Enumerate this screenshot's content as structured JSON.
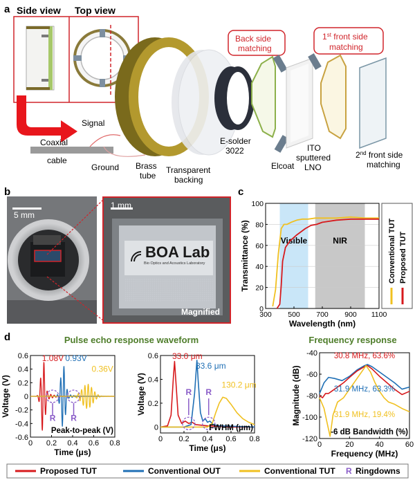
{
  "panels": {
    "a": "a",
    "b": "b",
    "c": "c",
    "d": "d"
  },
  "panel_a": {
    "side_view": "Side view",
    "top_view": "Top view",
    "signal": "Signal",
    "coaxial_line1": "Coaxial",
    "coaxial_line2": "cable",
    "ground": "Ground",
    "brass_line1": "Brass",
    "brass_line2": "tube",
    "backing_line1": "Transparent",
    "backing_line2": "backing",
    "esolder_line1": "E-solder",
    "esolder_line2": "3022",
    "elcoat": "Elcoat",
    "ito_line1": "ITO",
    "ito_line2": "sputtered",
    "ito_line3": "LNO",
    "second_front_line1_sup": "nd",
    "second_front_line1_num": "2",
    "second_front_line1_rest": " front side",
    "second_front_line2": "matching",
    "back_matching_line1": "Back side",
    "back_matching_line2": "matching",
    "first_front_num": "1",
    "first_front_sup": "st",
    "first_front_rest": " front side",
    "first_front_line2": "matching"
  },
  "panel_b": {
    "scale_left": "5 mm",
    "scale_right": "1 mm",
    "logo_text": "BOA Lab",
    "logo_sub": "Bio Optics and Acoustics Laboratory",
    "magnified": "Magnified"
  },
  "colors": {
    "proposed": "#d7191c",
    "conventional_out": "#1f6fb5",
    "conventional_tut": "#f0c020",
    "ringdown": "#8a5cc8",
    "visible_band": "#c9e6f8",
    "nir_band": "#c8c8c8",
    "title_green": "#4e7d2a"
  },
  "legend": {
    "proposed": "Proposed TUT",
    "conventional_out": "Conventional OUT",
    "conventional_tut": "Conventional TUT",
    "ringdowns_symbol": "R",
    "ringdowns": "Ringdowns"
  },
  "section_titles": {
    "pulse": "Pulse echo response waveform",
    "freq": "Frequency response"
  },
  "chart_data": [
    {
      "id": "c",
      "type": "line",
      "xlabel": "Wavelength (nm)",
      "ylabel": "Transmittance (%)",
      "xlim": [
        300,
        1100
      ],
      "ylim": [
        0,
        100
      ],
      "xticks": [
        300,
        500,
        700,
        900,
        1100
      ],
      "yticks": [
        0,
        20,
        40,
        60,
        80,
        100
      ],
      "bands": [
        {
          "label": "Visible",
          "x": [
            400,
            600
          ]
        },
        {
          "label": "NIR",
          "x": [
            650,
            1000
          ]
        }
      ],
      "legend": [
        "Conventional TUT",
        "Proposed TUT"
      ],
      "series": [
        {
          "name": "Conventional TUT",
          "x": [
            350,
            370,
            390,
            410,
            430,
            450,
            480,
            520,
            560,
            600,
            650,
            700,
            800,
            900,
            1000,
            1050,
            1100
          ],
          "y": [
            2,
            18,
            52,
            76,
            80,
            80,
            82,
            84,
            85,
            85,
            86,
            86,
            86,
            87,
            86,
            86,
            86
          ]
        },
        {
          "name": "Proposed TUT",
          "x": [
            380,
            400,
            410,
            420,
            440,
            470,
            520,
            580,
            620,
            660,
            700,
            800,
            900,
            1000,
            1050,
            1100
          ],
          "y": [
            0,
            4,
            22,
            45,
            58,
            64,
            70,
            76,
            79,
            80,
            82,
            84,
            85,
            85,
            85,
            85
          ]
        }
      ]
    },
    {
      "id": "d1",
      "type": "line",
      "xlabel": "Time (μs)",
      "ylabel": "Voltage (V)",
      "xlim": [
        0,
        0.8
      ],
      "ylim": [
        -0.6,
        0.6
      ],
      "xticks": [
        0,
        0.2,
        0.4,
        0.6,
        0.8
      ],
      "yticks": [
        -0.6,
        -0.4,
        -0.2,
        0,
        0.2,
        0.4,
        0.6
      ],
      "annotations": [
        "1.08V",
        "0.93V",
        "0.36V"
      ],
      "box_label": "Peak-to-peak (V)",
      "series": [
        {
          "name": "Proposed TUT",
          "center": 0.12,
          "amplitude": 0.54,
          "freq_mhz": 30.8,
          "decay": 0.02,
          "tail": 0.06
        },
        {
          "name": "Conventional OUT",
          "center": 0.31,
          "amplitude": 0.47,
          "freq_mhz": 31.9,
          "decay": 0.022,
          "tail": 0.05
        },
        {
          "name": "Conventional TUT",
          "center": 0.54,
          "amplitude": 0.18,
          "freq_mhz": 31.9,
          "decay": 0.05,
          "tail": 0.08
        }
      ]
    },
    {
      "id": "d2",
      "type": "line",
      "xlabel": "Time (μs)",
      "ylabel": "Voltage (V)",
      "xlim": [
        0,
        0.8
      ],
      "ylim": [
        -0.05,
        0.6
      ],
      "xticks": [
        0,
        0.2,
        0.4,
        0.6,
        0.8
      ],
      "yticks": [
        0,
        0.2,
        0.4,
        0.6
      ],
      "annotations": [
        "33.0 μm",
        "33.6 μm",
        "130.2 μm"
      ],
      "box_label": "FWHM (μm)",
      "series": [
        {
          "name": "Proposed TUT",
          "x": [
            0.0,
            0.06,
            0.09,
            0.11,
            0.12,
            0.13,
            0.15,
            0.18,
            0.21,
            0.24,
            0.27,
            0.3,
            0.4,
            0.6,
            0.8
          ],
          "y": [
            0.0,
            0.01,
            0.1,
            0.42,
            0.55,
            0.4,
            0.1,
            0.03,
            0.05,
            0.03,
            0.04,
            0.02,
            0.01,
            0.0,
            0.0
          ]
        },
        {
          "name": "Conventional OUT",
          "x": [
            0.0,
            0.2,
            0.26,
            0.29,
            0.31,
            0.32,
            0.34,
            0.36,
            0.38,
            0.4,
            0.42,
            0.45,
            0.5,
            0.8
          ],
          "y": [
            0.0,
            0.0,
            0.02,
            0.28,
            0.56,
            0.4,
            0.12,
            0.05,
            0.07,
            0.04,
            0.05,
            0.02,
            0.01,
            0.0
          ]
        },
        {
          "name": "Conventional TUT",
          "x": [
            0.0,
            0.4,
            0.44,
            0.47,
            0.5,
            0.53,
            0.56,
            0.6,
            0.65,
            0.7,
            0.75,
            0.8
          ],
          "y": [
            0.0,
            0.0,
            0.03,
            0.12,
            0.2,
            0.25,
            0.24,
            0.19,
            0.12,
            0.07,
            0.04,
            0.02
          ]
        }
      ]
    },
    {
      "id": "d3",
      "type": "line",
      "xlabel": "Frequency (MHz)",
      "ylabel": "Magnitude (dB)",
      "xlim": [
        0,
        60
      ],
      "ylim": [
        -120,
        -40
      ],
      "xticks": [
        0,
        20,
        40,
        60
      ],
      "yticks": [
        -120,
        -100,
        -80,
        -60,
        -40
      ],
      "annotations": [
        "30.8 MHz, 63.6%",
        "31.9 MHz, 63.3%",
        "31.9 MHz, 19.4%"
      ],
      "box_label": "-6 dB Bandwidth (%)",
      "series": [
        {
          "name": "Conventional OUT",
          "x": [
            0,
            3,
            6,
            10,
            15,
            20,
            25,
            30,
            32,
            35,
            40,
            45,
            50,
            55,
            60
          ],
          "y": [
            -78,
            -68,
            -63,
            -64,
            -66,
            -62,
            -56,
            -52,
            -51,
            -53,
            -58,
            -63,
            -68,
            -74,
            -72
          ]
        },
        {
          "name": "Proposed TUT",
          "x": [
            0,
            2,
            4,
            6,
            8,
            12,
            16,
            20,
            25,
            30,
            32,
            35,
            40,
            45,
            50,
            55,
            60
          ],
          "y": [
            -80,
            -82,
            -78,
            -78,
            -76,
            -72,
            -68,
            -63,
            -57,
            -53,
            -52,
            -55,
            -62,
            -68,
            -74,
            -79,
            -76
          ]
        },
        {
          "name": "Conventional TUT",
          "x": [
            0,
            3,
            5,
            7,
            9,
            12,
            16,
            20,
            24,
            28,
            31,
            34,
            37,
            40,
            43,
            46,
            50,
            55,
            60
          ],
          "y": [
            -82,
            -92,
            -105,
            -118,
            -98,
            -86,
            -82,
            -74,
            -66,
            -58,
            -52,
            -58,
            -68,
            -76,
            -82,
            -86,
            -88,
            -92,
            -95
          ]
        }
      ]
    }
  ]
}
